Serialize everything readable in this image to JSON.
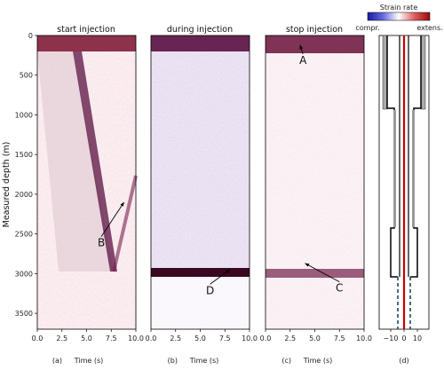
{
  "chart_data": {
    "type": "heatmap",
    "ylabel": "Measured depth (m)",
    "ylim": [
      3700,
      0
    ],
    "yticks": [
      0,
      500,
      1000,
      1500,
      2000,
      2500,
      3000,
      3500
    ],
    "colorbar": {
      "title": "Strain rate",
      "left_label": "compr.",
      "right_label": "extens.",
      "colors": [
        "#1a1aa0",
        "#ffffff",
        "#b01010"
      ]
    },
    "panels": [
      {
        "title": "start injection",
        "caption": "(a)",
        "xlabel": "Time (s)",
        "xlim": [
          0,
          10
        ],
        "xticks": [
          "0.0",
          "2.5",
          "5.0",
          "7.5",
          "10.0"
        ]
      },
      {
        "title": "during injection",
        "caption": "(b)",
        "xlabel": "Time (s)",
        "xlim": [
          0,
          10
        ],
        "xticks": [
          "0.0",
          "2.5",
          "5.0",
          "7.5",
          "10.0"
        ]
      },
      {
        "title": "stop injection",
        "caption": "(c)",
        "xlabel": "Time (s)",
        "xlim": [
          0,
          10
        ],
        "xticks": [
          "0.0",
          "2.5",
          "5.0",
          "7.5",
          "10.0"
        ]
      }
    ],
    "well_panel": {
      "caption": "(d)",
      "xticks": [
        "−10",
        "0",
        "10"
      ]
    },
    "annotations": [
      {
        "label": "A",
        "panel": 3,
        "time": 3.8,
        "depth": 300,
        "target_time": 3.5,
        "target_depth": 120
      },
      {
        "label": "B",
        "panel": 1,
        "time": 6.5,
        "depth": 2600,
        "target_time": 8.8,
        "target_depth": 2100
      },
      {
        "label": "C",
        "panel": 3,
        "time": 7.5,
        "depth": 3170,
        "target_time": 4.0,
        "target_depth": 2870
      },
      {
        "label": "D",
        "panel": 2,
        "time": 6.0,
        "depth": 3200,
        "target_time": 8.0,
        "target_depth": 2950
      }
    ]
  }
}
